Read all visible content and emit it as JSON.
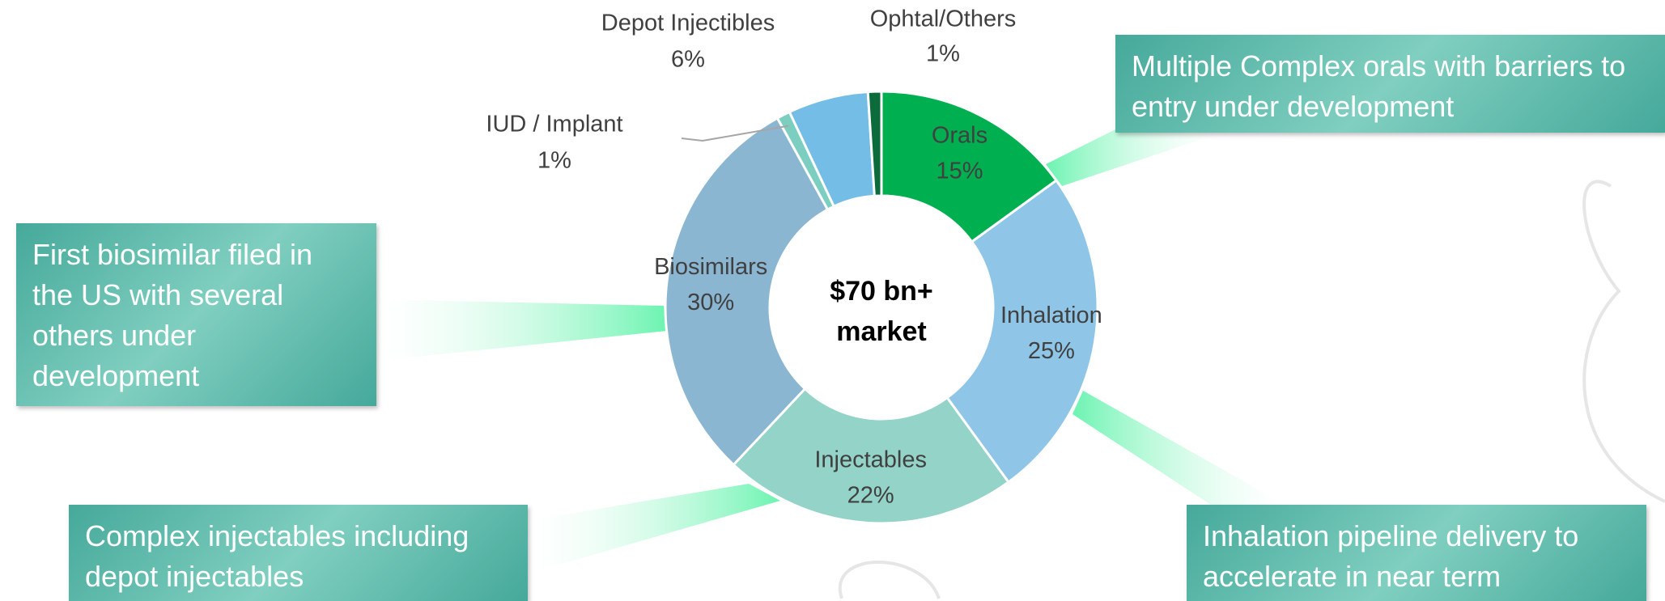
{
  "chart_data": {
    "type": "donut",
    "center_label": [
      "$70 bn+",
      "market"
    ],
    "categories": [
      "Orals",
      "Inhalation",
      "Injectables",
      "Biosimilars",
      "IUD / Implant",
      "Depot Injectibles",
      "Ophtal/Others"
    ],
    "values": [
      15,
      25,
      22,
      30,
      1,
      6,
      1
    ],
    "value_labels": [
      "15%",
      "25%",
      "22%",
      "30%",
      "1%",
      "6%",
      "1%"
    ],
    "colors": [
      "#00b050",
      "#8fc6e8",
      "#93d3c8",
      "#8ab6d2",
      "#7ccfc0",
      "#74bde6",
      "#0b6b3a"
    ],
    "annotations": [
      "Multiple Complex orals with barriers to entry under development",
      "First biosimilar filed in the US with several others under development",
      "Complex injectables including depot injectables",
      "Inhalation pipeline delivery to accelerate in near term"
    ]
  }
}
